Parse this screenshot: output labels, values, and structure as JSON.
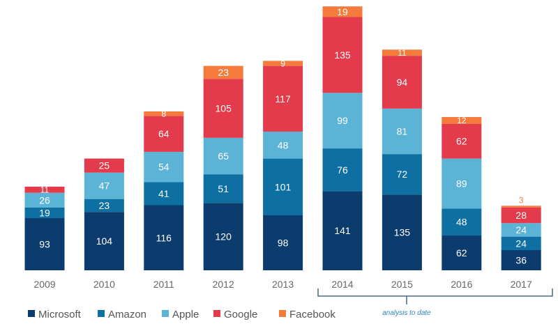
{
  "chart_data": {
    "type": "bar",
    "stacked": true,
    "categories": [
      "2009",
      "2010",
      "2011",
      "2012",
      "2013",
      "2014",
      "2015",
      "2016",
      "2017"
    ],
    "series": [
      {
        "name": "Microsoft",
        "color": "#0c3c6e",
        "values": [
          93,
          104,
          116,
          120,
          98,
          141,
          135,
          62,
          36
        ]
      },
      {
        "name": "Amazon",
        "color": "#0e6fa3",
        "values": [
          19,
          23,
          41,
          51,
          101,
          76,
          72,
          48,
          24
        ]
      },
      {
        "name": "Apple",
        "color": "#5bb3d6",
        "values": [
          26,
          47,
          54,
          65,
          48,
          99,
          81,
          89,
          24
        ]
      },
      {
        "name": "Google",
        "color": "#e33b4b",
        "values": [
          11,
          25,
          64,
          105,
          117,
          135,
          94,
          62,
          28
        ]
      },
      {
        "name": "Facebook",
        "color": "#f47b3b",
        "values": [
          null,
          null,
          8,
          23,
          9,
          19,
          11,
          12,
          3
        ]
      }
    ],
    "legend": "bottom-left",
    "grid": false,
    "annotation": {
      "text": "analysis to date",
      "span": [
        "2014",
        "2017"
      ]
    }
  }
}
